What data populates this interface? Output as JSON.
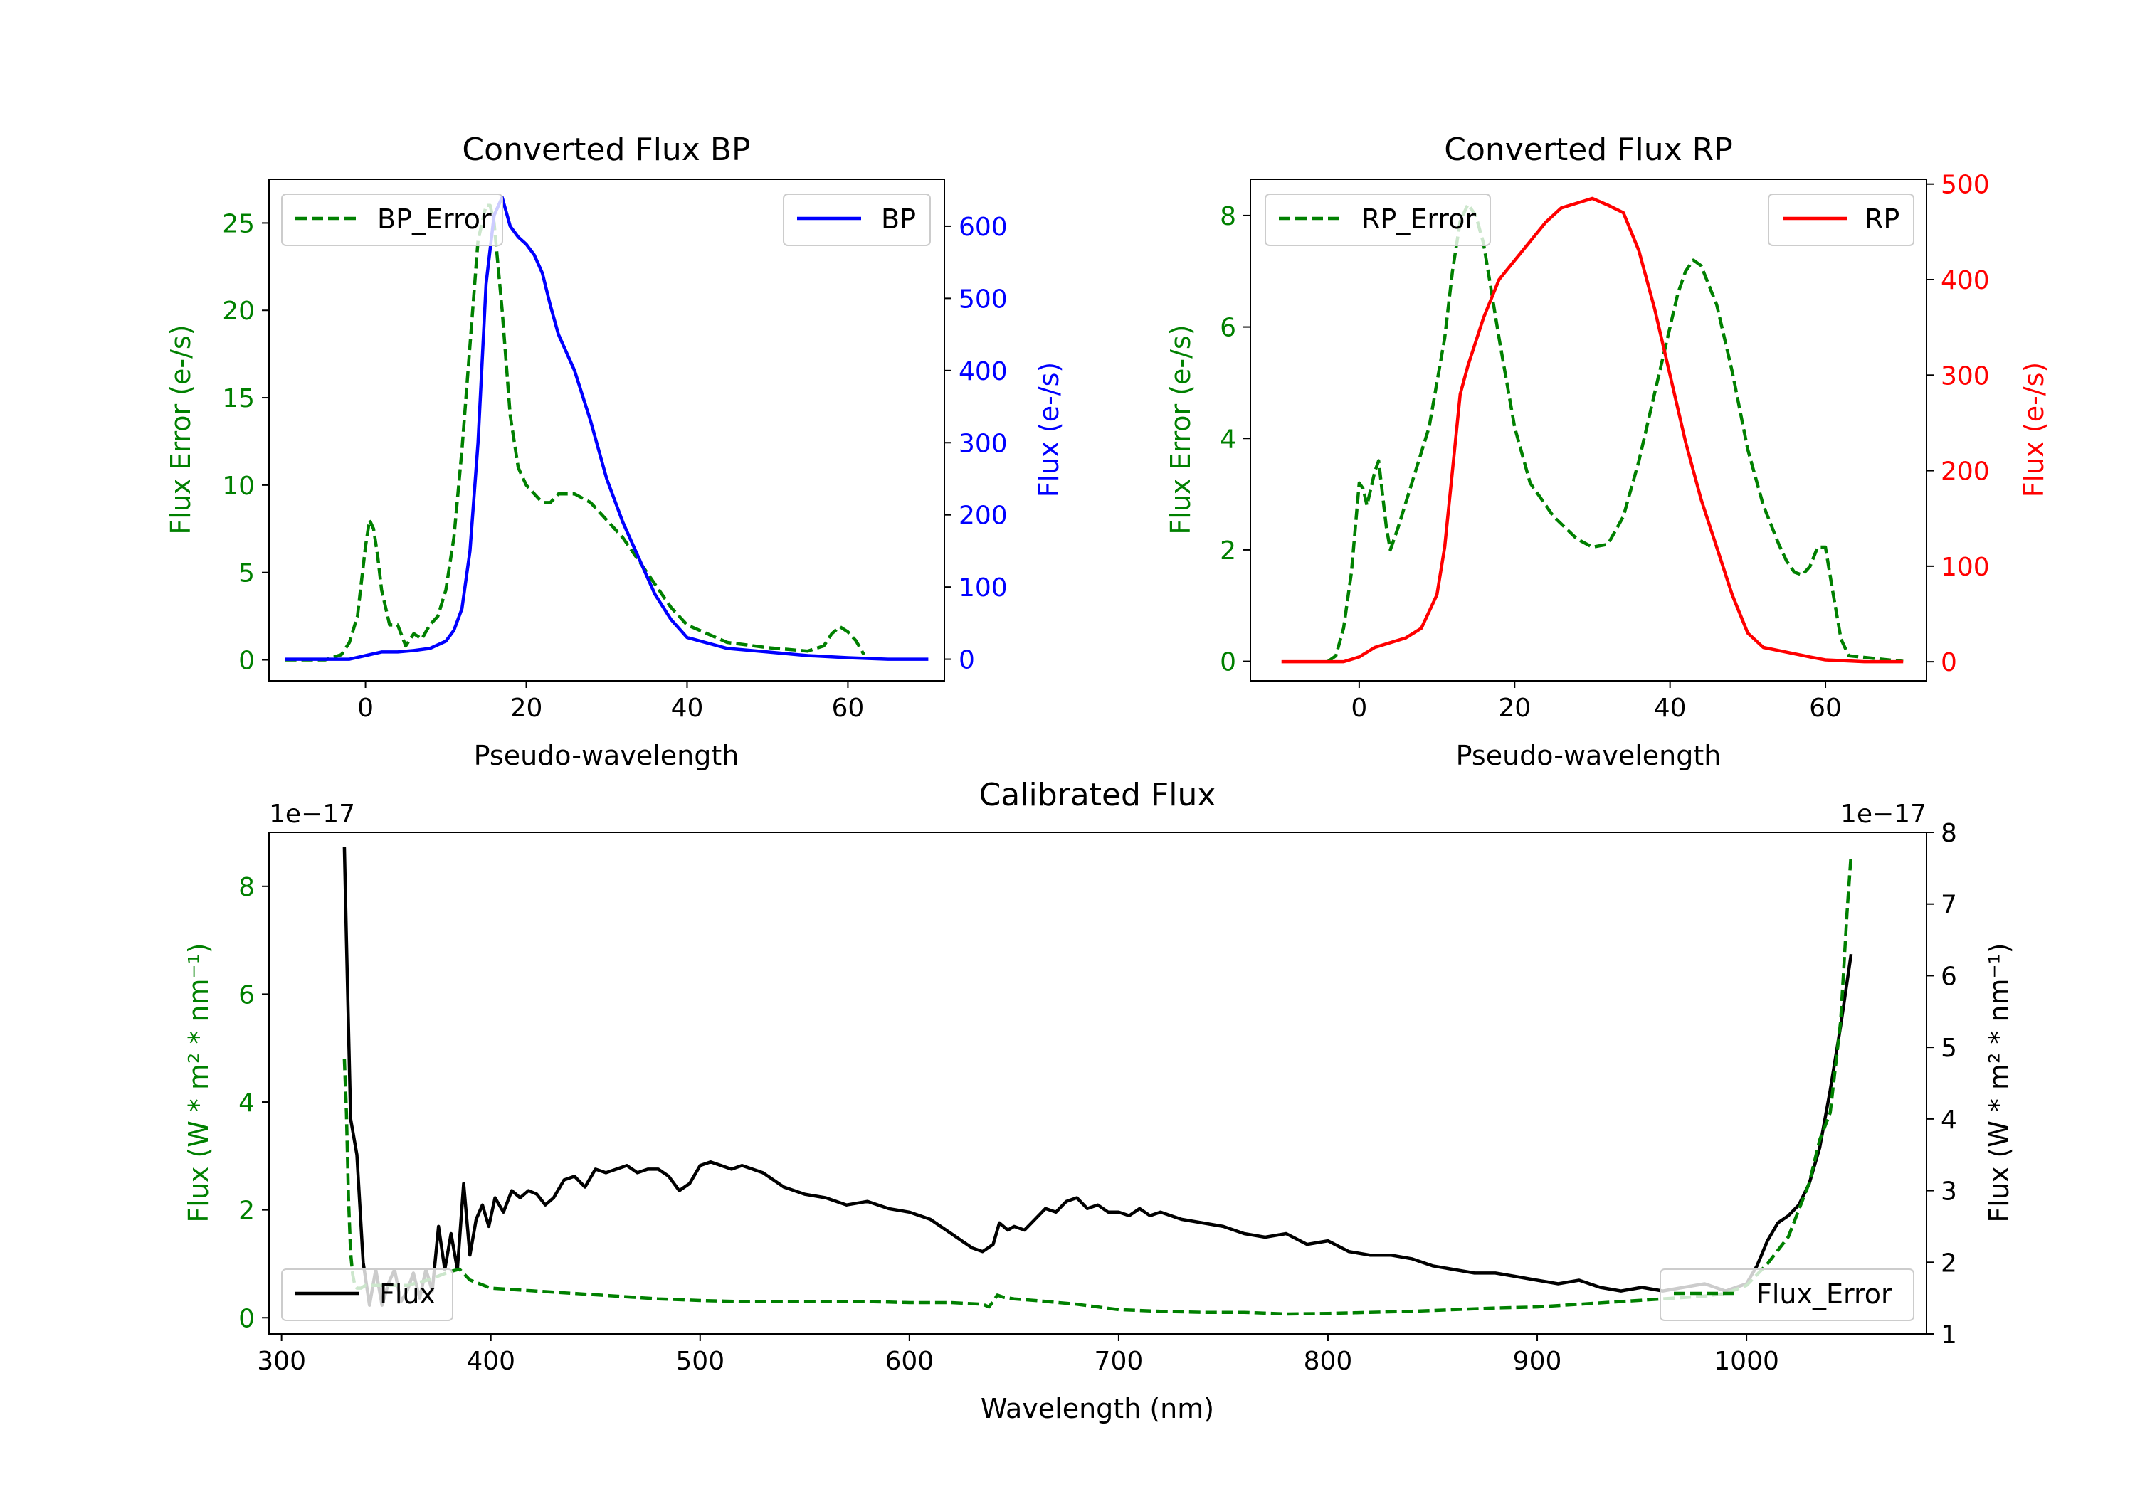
{
  "chart_data": [
    {
      "id": "bp",
      "type": "line",
      "title": "Converted Flux BP",
      "xlabel": "Pseudo-wavelength",
      "ylabel_left": "Flux Error (e-/s)",
      "ylabel_right": "Flux (e-/s)",
      "xlim": [
        -12,
        72
      ],
      "ylim_left": [
        -1.2,
        27.5
      ],
      "ylim_right": [
        -30,
        665
      ],
      "xticks": [
        0,
        20,
        40,
        60
      ],
      "yticks_left": [
        0,
        5,
        10,
        15,
        20,
        25
      ],
      "yticks_right": [
        0,
        100,
        200,
        300,
        400,
        500,
        600
      ],
      "colors": {
        "left": "#008000",
        "right": "#0000ff"
      },
      "series": [
        {
          "name": "BP_Error",
          "axis": "left",
          "color": "#008000",
          "style": "dashed",
          "legend": "upper left",
          "x": [
            -10,
            -5,
            -3,
            -2,
            -1,
            0,
            0.5,
            1,
            1.5,
            2,
            3,
            4,
            5,
            6,
            7,
            8,
            9,
            10,
            11,
            12,
            13,
            14,
            15,
            15.5,
            16,
            17,
            18,
            19,
            20,
            21,
            22,
            23,
            24,
            26,
            28,
            30,
            32,
            35,
            38,
            40,
            45,
            50,
            55,
            57,
            58,
            59,
            60,
            61,
            62
          ],
          "y": [
            0,
            0,
            0.3,
            1,
            2.5,
            6.5,
            8,
            7.5,
            6,
            4,
            2,
            2,
            0.8,
            1.5,
            1.2,
            2,
            2.5,
            4,
            7,
            12,
            18,
            24,
            26,
            26,
            25,
            20,
            14,
            11,
            10,
            9.5,
            9,
            9,
            9.5,
            9.5,
            9,
            8,
            7,
            5,
            3,
            2,
            1,
            0.7,
            0.5,
            0.8,
            1.5,
            1.9,
            1.6,
            1.1,
            0.3
          ]
        },
        {
          "name": "BP",
          "axis": "right",
          "color": "#0000ff",
          "style": "solid",
          "legend": "upper right",
          "x": [
            -10,
            -5,
            -2,
            0,
            2,
            4,
            6,
            8,
            10,
            11,
            12,
            13,
            14,
            15,
            16,
            17,
            18,
            19,
            20,
            21,
            22,
            23,
            24,
            26,
            28,
            30,
            32,
            34,
            36,
            38,
            40,
            45,
            50,
            55,
            60,
            65,
            70
          ],
          "y": [
            0,
            0,
            0,
            5,
            10,
            10,
            12,
            15,
            25,
            40,
            70,
            150,
            300,
            520,
            615,
            640,
            600,
            585,
            575,
            560,
            535,
            490,
            450,
            400,
            330,
            250,
            190,
            140,
            90,
            55,
            30,
            15,
            10,
            5,
            2,
            0,
            0
          ]
        }
      ],
      "legend_labels": [
        "BP_Error",
        "BP"
      ]
    },
    {
      "id": "rp",
      "type": "line",
      "title": "Converted Flux RP",
      "xlabel": "Pseudo-wavelength",
      "ylabel_left": "Flux Error (e-/s)",
      "ylabel_right": "Flux (e-/s)",
      "xlim": [
        -14,
        73
      ],
      "ylim_left": [
        -0.35,
        8.65
      ],
      "ylim_right": [
        -20,
        505
      ],
      "xticks": [
        0,
        20,
        40,
        60
      ],
      "yticks_left": [
        0,
        2,
        4,
        6,
        8
      ],
      "yticks_right": [
        0,
        100,
        200,
        300,
        400,
        500
      ],
      "colors": {
        "left": "#008000",
        "right": "#ff0000"
      },
      "series": [
        {
          "name": "RP_Error",
          "axis": "left",
          "color": "#008000",
          "style": "dashed",
          "legend": "upper left",
          "x": [
            -4,
            -3,
            -2,
            -1,
            0,
            0.5,
            1,
            2,
            2.5,
            3,
            3.5,
            4,
            5,
            7,
            9,
            11,
            12,
            13,
            14,
            15,
            16,
            18,
            20,
            22,
            25,
            28,
            30,
            32,
            34,
            36,
            38,
            40,
            41,
            42,
            43,
            44,
            46,
            48,
            50,
            52,
            54,
            55,
            56,
            57,
            58,
            59,
            60,
            61,
            62,
            63,
            70
          ],
          "y": [
            0,
            0.1,
            0.6,
            1.6,
            3.2,
            3.1,
            2.8,
            3.4,
            3.6,
            3,
            2.4,
            2,
            2.4,
            3.3,
            4.2,
            5.8,
            7,
            7.9,
            8.2,
            8,
            7.5,
            5.8,
            4.2,
            3.2,
            2.6,
            2.2,
            2.05,
            2.1,
            2.6,
            3.6,
            4.8,
            6,
            6.6,
            7,
            7.2,
            7.1,
            6.4,
            5.2,
            3.8,
            2.8,
            2.1,
            1.8,
            1.6,
            1.55,
            1.7,
            2.05,
            2.05,
            1.2,
            0.4,
            0.1,
            0
          ]
        },
        {
          "name": "RP",
          "axis": "right",
          "color": "#ff0000",
          "style": "solid",
          "legend": "upper right",
          "x": [
            -10,
            -5,
            -2,
            0,
            2,
            4,
            6,
            8,
            10,
            11,
            12,
            13,
            14,
            16,
            18,
            20,
            22,
            24,
            26,
            28,
            30,
            32,
            34,
            36,
            38,
            40,
            42,
            44,
            46,
            48,
            50,
            52,
            55,
            58,
            60,
            65,
            70
          ],
          "y": [
            0,
            0,
            0,
            5,
            15,
            20,
            25,
            35,
            70,
            120,
            200,
            280,
            310,
            360,
            400,
            420,
            440,
            460,
            475,
            480,
            485,
            478,
            470,
            430,
            370,
            300,
            230,
            170,
            120,
            70,
            30,
            15,
            10,
            5,
            2,
            0,
            0
          ]
        }
      ],
      "legend_labels": [
        "RP_Error",
        "RP"
      ]
    },
    {
      "id": "cal",
      "type": "line",
      "title": "Calibrated Flux",
      "xlabel": "Wavelength (nm)",
      "ylabel_left": "Flux (W * m² * nm⁻¹)",
      "ylabel_right": "Flux (W * m² * nm⁻¹)",
      "offset_left": "1e−17",
      "offset_right": "1e−17",
      "xlim": [
        294,
        1086
      ],
      "ylim_left": [
        -0.3,
        9.0
      ],
      "ylim_right": [
        1.0,
        8.0
      ],
      "xticks": [
        300,
        400,
        500,
        600,
        700,
        800,
        900,
        1000
      ],
      "yticks_left": [
        0,
        2,
        4,
        6,
        8
      ],
      "yticks_right": [
        1,
        2,
        3,
        4,
        5,
        6,
        7,
        8
      ],
      "colors": {
        "left": "#008000",
        "right": "#000000"
      },
      "series": [
        {
          "name": "Flux",
          "axis": "right",
          "color": "#000000",
          "style": "solid",
          "legend": "lower left",
          "x": [
            330,
            331,
            333,
            336,
            339,
            342,
            345,
            348,
            351,
            354,
            357,
            360,
            363,
            366,
            369,
            372,
            375,
            378,
            381,
            384,
            387,
            390,
            393,
            396,
            399,
            402,
            406,
            410,
            414,
            418,
            422,
            426,
            430,
            435,
            440,
            445,
            450,
            455,
            460,
            465,
            470,
            475,
            480,
            485,
            490,
            495,
            500,
            505,
            510,
            515,
            520,
            530,
            540,
            550,
            560,
            570,
            580,
            590,
            600,
            610,
            620,
            625,
            630,
            635,
            640,
            643,
            647,
            650,
            655,
            660,
            665,
            670,
            675,
            680,
            685,
            690,
            695,
            700,
            705,
            710,
            715,
            720,
            730,
            740,
            750,
            760,
            770,
            780,
            790,
            800,
            810,
            820,
            830,
            840,
            850,
            860,
            870,
            880,
            890,
            900,
            910,
            920,
            930,
            940,
            950,
            960,
            970,
            980,
            990,
            995,
            1000,
            1005,
            1010,
            1015,
            1020,
            1025,
            1030,
            1035,
            1040,
            1045,
            1050
          ],
          "y": [
            7.8,
            6.5,
            4.0,
            3.5,
            2.0,
            1.4,
            1.9,
            1.4,
            1.7,
            1.9,
            1.45,
            1.6,
            1.85,
            1.5,
            1.9,
            1.6,
            2.5,
            1.9,
            2.4,
            1.9,
            3.1,
            2.1,
            2.6,
            2.8,
            2.5,
            2.9,
            2.7,
            3.0,
            2.9,
            3.0,
            2.95,
            2.8,
            2.9,
            3.15,
            3.2,
            3.05,
            3.3,
            3.25,
            3.3,
            3.35,
            3.25,
            3.3,
            3.3,
            3.2,
            3.0,
            3.1,
            3.35,
            3.4,
            3.35,
            3.3,
            3.35,
            3.25,
            3.05,
            2.95,
            2.9,
            2.8,
            2.85,
            2.75,
            2.7,
            2.6,
            2.4,
            2.3,
            2.2,
            2.15,
            2.25,
            2.55,
            2.45,
            2.5,
            2.45,
            2.6,
            2.75,
            2.7,
            2.85,
            2.9,
            2.75,
            2.8,
            2.7,
            2.7,
            2.65,
            2.75,
            2.65,
            2.7,
            2.6,
            2.55,
            2.5,
            2.4,
            2.35,
            2.4,
            2.25,
            2.3,
            2.15,
            2.1,
            2.1,
            2.05,
            1.95,
            1.9,
            1.85,
            1.85,
            1.8,
            1.75,
            1.7,
            1.75,
            1.65,
            1.6,
            1.65,
            1.6,
            1.65,
            1.7,
            1.6,
            1.65,
            1.7,
            1.95,
            2.3,
            2.55,
            2.65,
            2.8,
            3.1,
            3.6,
            4.4,
            5.3,
            6.3
          ]
        },
        {
          "name": "Flux_Error",
          "axis": "left",
          "color": "#008000",
          "style": "dashed",
          "legend": "lower right",
          "x": [
            330,
            331,
            332,
            333,
            334,
            335,
            336,
            338,
            340,
            345,
            350,
            360,
            370,
            380,
            385,
            390,
            400,
            420,
            440,
            460,
            480,
            500,
            520,
            540,
            560,
            580,
            600,
            620,
            635,
            638,
            640,
            642,
            645,
            650,
            660,
            680,
            700,
            720,
            740,
            760,
            780,
            800,
            820,
            840,
            860,
            880,
            900,
            920,
            940,
            960,
            980,
            990,
            1000,
            1010,
            1020,
            1030,
            1035,
            1040,
            1045,
            1048,
            1050
          ],
          "y": [
            4.8,
            3.8,
            2.2,
            1.2,
            0.8,
            0.6,
            0.55,
            0.55,
            0.6,
            0.6,
            0.6,
            0.6,
            0.7,
            0.85,
            0.9,
            0.7,
            0.55,
            0.5,
            0.45,
            0.4,
            0.35,
            0.32,
            0.3,
            0.3,
            0.3,
            0.3,
            0.28,
            0.28,
            0.25,
            0.2,
            0.3,
            0.42,
            0.38,
            0.35,
            0.32,
            0.25,
            0.15,
            0.12,
            0.1,
            0.1,
            0.07,
            0.08,
            0.1,
            0.12,
            0.15,
            0.18,
            0.2,
            0.25,
            0.3,
            0.35,
            0.4,
            0.45,
            0.6,
            1.0,
            1.5,
            2.5,
            3.3,
            3.8,
            5.5,
            7.5,
            8.6
          ]
        }
      ],
      "legend_labels": [
        "Flux",
        "Flux_Error"
      ]
    }
  ]
}
